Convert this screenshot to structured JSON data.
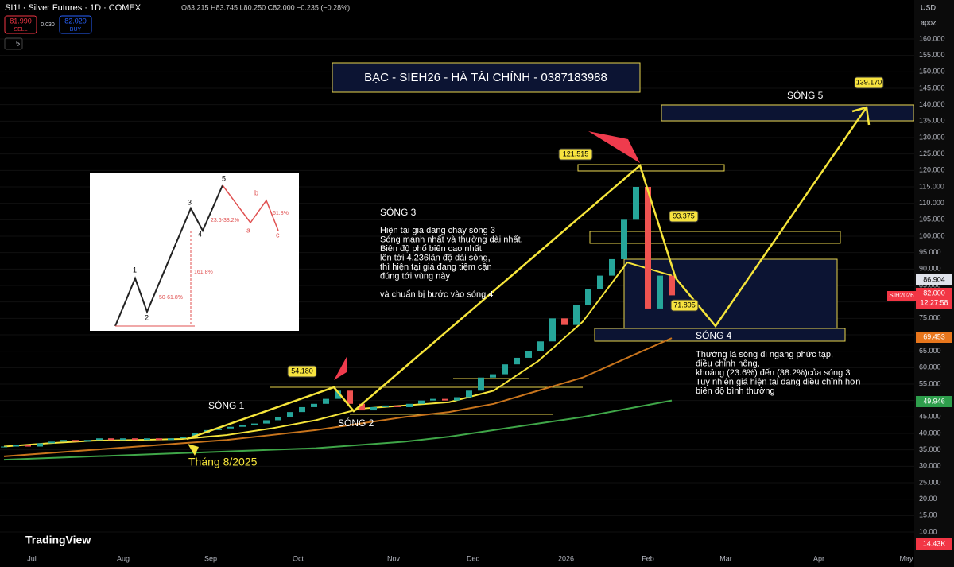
{
  "header": {
    "symbol": "SI1! · Silver Futures · 1D · COMEX",
    "ohlc": "O83.215 H83.745 L80.250 C82.000 −0.235 (−0.28%)",
    "sell_price": "81.990",
    "sell": "SELL",
    "spread": "0.030",
    "buy_price": "82.020",
    "buy": "BUY",
    "indicators": "5",
    "currency": "USD",
    "scale_mode": "apoz"
  },
  "title_box": "BẠC - SIEH26 - HÀ TÀI CHÍNH - 0387183988",
  "annotations": {
    "wave1": "SÓNG 1",
    "wave2": "SÓNG 2",
    "wave3": "SÓNG 3",
    "wave4": "SÓNG 4",
    "wave5": "SÓNG 5",
    "month": "Tháng 8/2025",
    "wave3_text": [
      "Hiện tại giá đang chạy sóng 3",
      "Sóng mạnh nhất và thường dài nhất.",
      "Biên độ phổ biến cao nhất",
      "lên tới 4.236lần độ dài sóng,",
      "thì hiện tại giá đang tiệm cận",
      "đúng tới vùng này",
      "",
      "và chuẩn bị bước vào sóng 4"
    ],
    "wave4_text": [
      "Thường là sóng đi ngang phức tạp,",
      "điều chỉnh nông,",
      "khoảng (23.6%) đến (38.2%)của sóng 3",
      "Tuy nhiên giá hiện tại đang điều chỉnh hơn",
      "biên độ bình thường"
    ],
    "price_tags": [
      "54.180",
      "121.515",
      "93.375",
      "71.895",
      "139.170"
    ]
  },
  "inset": {
    "labels": [
      "1",
      "2",
      "3",
      "4",
      "5",
      "a",
      "b",
      "c"
    ],
    "ratios": [
      "23.6-38.2%",
      "61.8%",
      "161.8%",
      "50-61.8%"
    ]
  },
  "price_labels": {
    "last_close": "86.904",
    "symbol_tag": "SIH2026",
    "current": "82.000",
    "countdown": "12:27:58",
    "ma_orange": "69.453",
    "ma_green": "49.946",
    "volume": "14.43K"
  },
  "time_axis": [
    "Jul",
    "Aug",
    "Sep",
    "Oct",
    "Nov",
    "Dec",
    "2026",
    "Feb",
    "Mar",
    "Apr",
    "May"
  ],
  "logo": "TradingView",
  "chart_data": {
    "type": "candlestick",
    "closes": [
      36,
      36.5,
      36,
      37,
      37.5,
      38,
      37.5,
      38,
      38.5,
      38,
      38.5,
      38,
      38.5,
      38,
      38.5,
      39,
      40,
      41,
      41.5,
      42,
      42.5,
      43,
      44,
      45,
      46.5,
      48,
      49,
      50.5,
      53,
      49,
      47,
      48,
      48.5,
      48,
      49,
      50,
      50.5,
      50,
      51,
      53,
      57,
      58,
      61,
      63,
      65,
      68,
      75,
      73,
      79,
      84,
      88,
      93,
      105,
      115,
      78,
      88,
      82
    ],
    "up_color": "#26a69a",
    "down_color": "#ef5350",
    "ma_lines": [
      {
        "color": "#f5e43a",
        "values": [
          36,
          37,
          37.8,
          38,
          38.3,
          39.5,
          41.5,
          44,
          47.5,
          48.5,
          49.5,
          53,
          62,
          74,
          92,
          88
        ]
      },
      {
        "color": "#c8741c",
        "values": [
          33,
          34,
          35,
          36,
          37,
          38,
          39.5,
          41,
          43,
          45,
          46.5,
          49,
          53,
          57,
          63,
          69
        ]
      },
      {
        "color": "#3fa648",
        "values": [
          32,
          32.5,
          33,
          33.5,
          34,
          34.5,
          35,
          35.5,
          36.5,
          37.5,
          39,
          41,
          43,
          45,
          47.5,
          50
        ]
      }
    ],
    "ylim": [
      10,
      160
    ],
    "yticks": [
      {
        "value": 160,
        "label": "160.000"
      },
      {
        "value": 155,
        "label": "155.000"
      },
      {
        "value": 150,
        "label": "150.000"
      },
      {
        "value": 145,
        "label": "145.000"
      },
      {
        "value": 140,
        "label": "140.000"
      },
      {
        "value": 135,
        "label": "135.000"
      },
      {
        "value": 130,
        "label": "130.000"
      },
      {
        "value": 125,
        "label": "125.000"
      },
      {
        "value": 120,
        "label": "120.000"
      },
      {
        "value": 115,
        "label": "115.000"
      },
      {
        "value": 110,
        "label": "110.000"
      },
      {
        "value": 105,
        "label": "105.000"
      },
      {
        "value": 100,
        "label": "100.000"
      },
      {
        "value": 95,
        "label": "95.000"
      },
      {
        "value": 90,
        "label": "90.000"
      },
      {
        "value": 85,
        "label": "85.000"
      },
      {
        "value": 80,
        "label": "80.000"
      },
      {
        "value": 75,
        "label": "75.000"
      },
      {
        "value": 70,
        "label": "70.000"
      },
      {
        "value": 65,
        "label": "65.000"
      },
      {
        "value": 60,
        "label": "60.000"
      },
      {
        "value": 55,
        "label": "55.000"
      },
      {
        "value": 50,
        "label": "50.000"
      },
      {
        "value": 45,
        "label": "45.000"
      },
      {
        "value": 40,
        "label": "40.000"
      },
      {
        "value": 35,
        "label": "35.000"
      },
      {
        "value": 30,
        "label": "30.000"
      },
      {
        "value": 25,
        "label": "25.000"
      },
      {
        "value": 20,
        "label": "20.00"
      },
      {
        "value": 15,
        "label": "15.00"
      },
      {
        "value": 10,
        "label": "10.00"
      }
    ]
  }
}
